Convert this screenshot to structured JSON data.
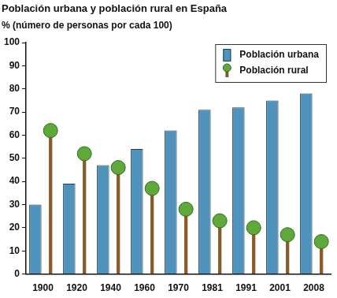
{
  "chart_data": {
    "type": "bar",
    "title": "Población urbana y población rural en España",
    "ylabel": "% (número de personas por cada 100)",
    "categories": [
      "1900",
      "1920",
      "1940",
      "1960",
      "1970",
      "1981",
      "1991",
      "2001",
      "2008"
    ],
    "series": [
      {
        "name": "Población urbana",
        "color": "#4f93bd",
        "values": [
          30,
          39,
          47,
          54,
          62,
          71,
          72,
          75,
          78
        ]
      },
      {
        "name": "Población rural",
        "color": "#8b5a2b",
        "marker": "tree",
        "values": [
          62,
          52,
          46,
          37,
          28,
          23,
          20,
          17,
          14
        ]
      }
    ],
    "ylim": [
      0,
      100
    ],
    "yticks": [
      0,
      10,
      20,
      30,
      40,
      50,
      60,
      70,
      80,
      90,
      100
    ],
    "grid": false,
    "legend": "top-right"
  }
}
